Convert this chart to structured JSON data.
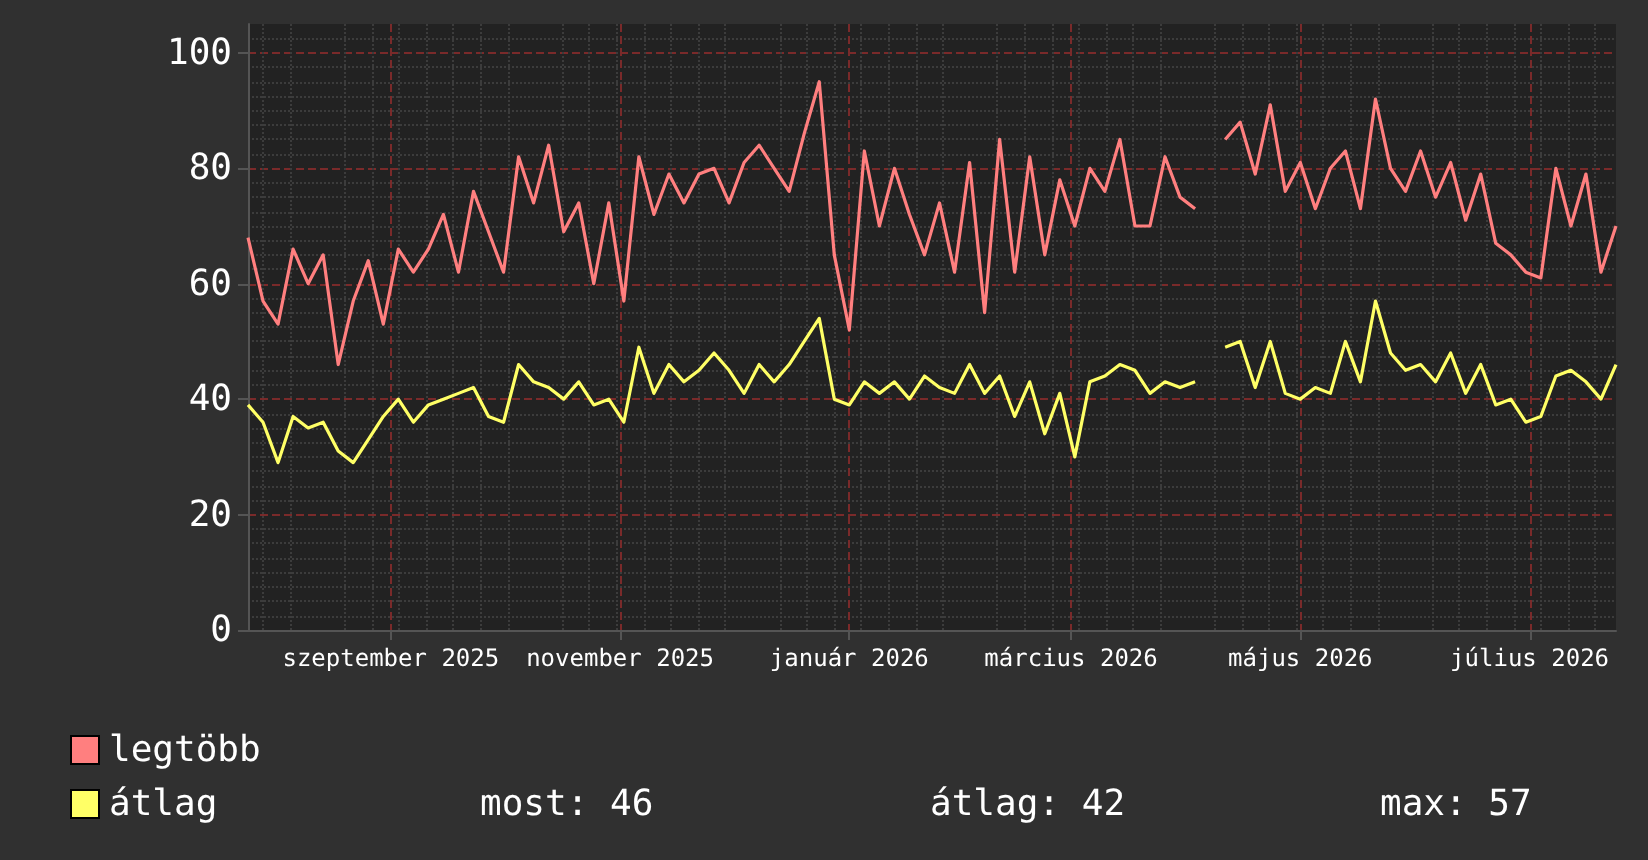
{
  "chart_data": {
    "type": "line",
    "x": [
      "2025-07-25",
      "2025-07-29",
      "2025-08-02",
      "2025-08-06",
      "2025-08-10",
      "2025-08-14",
      "2025-08-18",
      "2025-08-22",
      "2025-08-26",
      "2025-08-30",
      "2025-09-03",
      "2025-09-07",
      "2025-09-11",
      "2025-09-15",
      "2025-09-19",
      "2025-09-23",
      "2025-09-27",
      "2025-10-01",
      "2025-10-05",
      "2025-10-09",
      "2025-10-13",
      "2025-10-17",
      "2025-10-21",
      "2025-10-25",
      "2025-10-29",
      "2025-11-02",
      "2025-11-06",
      "2025-11-10",
      "2025-11-14",
      "2025-11-18",
      "2025-11-22",
      "2025-11-26",
      "2025-11-30",
      "2025-12-04",
      "2025-12-08",
      "2025-12-12",
      "2025-12-16",
      "2025-12-20",
      "2025-12-24",
      "2025-12-28",
      "2026-01-01",
      "2026-01-05",
      "2026-01-09",
      "2026-01-13",
      "2026-01-17",
      "2026-01-21",
      "2026-01-25",
      "2026-01-29",
      "2026-02-02",
      "2026-02-06",
      "2026-02-10",
      "2026-02-14",
      "2026-02-18",
      "2026-02-22",
      "2026-02-26",
      "2026-03-02",
      "2026-03-06",
      "2026-03-10",
      "2026-03-14",
      "2026-03-18",
      "2026-03-22",
      "2026-03-26",
      "2026-03-30",
      "2026-04-03",
      "2026-04-07",
      "2026-04-11",
      "2026-04-15",
      "2026-04-19",
      "2026-04-23",
      "2026-04-27",
      "2026-05-01",
      "2026-05-05",
      "2026-05-09",
      "2026-05-13",
      "2026-05-17",
      "2026-05-21",
      "2026-05-25",
      "2026-05-29",
      "2026-06-02",
      "2026-06-06",
      "2026-06-10",
      "2026-06-14",
      "2026-06-18",
      "2026-06-22",
      "2026-06-26",
      "2026-06-30",
      "2026-07-04",
      "2026-07-08",
      "2026-07-12",
      "2026-07-16",
      "2026-07-20",
      "2026-07-24"
    ],
    "series": [
      {
        "name": "legtöbb",
        "color": "#ff7f7f",
        "values": [
          68,
          57,
          53,
          66,
          60,
          65,
          46,
          57,
          64,
          53,
          66,
          62,
          66,
          72,
          62,
          76,
          69,
          62,
          82,
          74,
          84,
          69,
          74,
          60,
          74,
          57,
          82,
          72,
          79,
          74,
          79,
          80,
          74,
          81,
          84,
          80,
          76,
          86,
          95,
          65,
          52,
          83,
          70,
          80,
          72,
          65,
          74,
          62,
          81,
          55,
          85,
          62,
          82,
          65,
          78,
          70,
          80,
          76,
          85,
          70,
          70,
          82,
          75,
          73,
          null,
          85,
          88,
          79,
          91,
          76,
          81,
          73,
          80,
          83,
          73,
          92,
          80,
          76,
          83,
          75,
          81,
          71,
          79,
          67,
          65,
          62,
          61,
          80,
          70,
          79,
          62,
          70
        ]
      },
      {
        "name": "átlag",
        "color": "#ffff66",
        "values": [
          39,
          36,
          29,
          37,
          35,
          36,
          31,
          29,
          33,
          37,
          40,
          36,
          39,
          40,
          41,
          42,
          37,
          36,
          46,
          43,
          42,
          40,
          43,
          39,
          40,
          36,
          49,
          41,
          46,
          43,
          45,
          48,
          45,
          41,
          46,
          43,
          46,
          50,
          54,
          40,
          39,
          43,
          41,
          43,
          40,
          44,
          42,
          41,
          46,
          41,
          44,
          37,
          43,
          34,
          41,
          30,
          43,
          44,
          46,
          45,
          41,
          43,
          42,
          43,
          null,
          49,
          50,
          42,
          50,
          41,
          40,
          42,
          41,
          50,
          43,
          57,
          48,
          45,
          46,
          43,
          48,
          41,
          46,
          39,
          40,
          36,
          37,
          44,
          45,
          43,
          40,
          46
        ]
      }
    ],
    "xlim": [
      "2025-07-25",
      "2026-07-24"
    ],
    "xticks": [
      {
        "value": "2025-09-01",
        "label": "szeptember 2025"
      },
      {
        "value": "2025-11-01",
        "label": "november 2025"
      },
      {
        "value": "2026-01-01",
        "label": "január 2026"
      },
      {
        "value": "2026-03-01",
        "label": "március 2026"
      },
      {
        "value": "2026-05-01",
        "label": "május 2026"
      },
      {
        "value": "2026-07-01",
        "label": "július 2026"
      }
    ],
    "ylim": [
      0,
      105
    ],
    "yticks": [
      0,
      20,
      40,
      60,
      80,
      100
    ],
    "grid": true,
    "legend": "bottom left",
    "annotations": [
      "most: 46",
      "átlag: 42",
      "max: 57"
    ]
  }
}
